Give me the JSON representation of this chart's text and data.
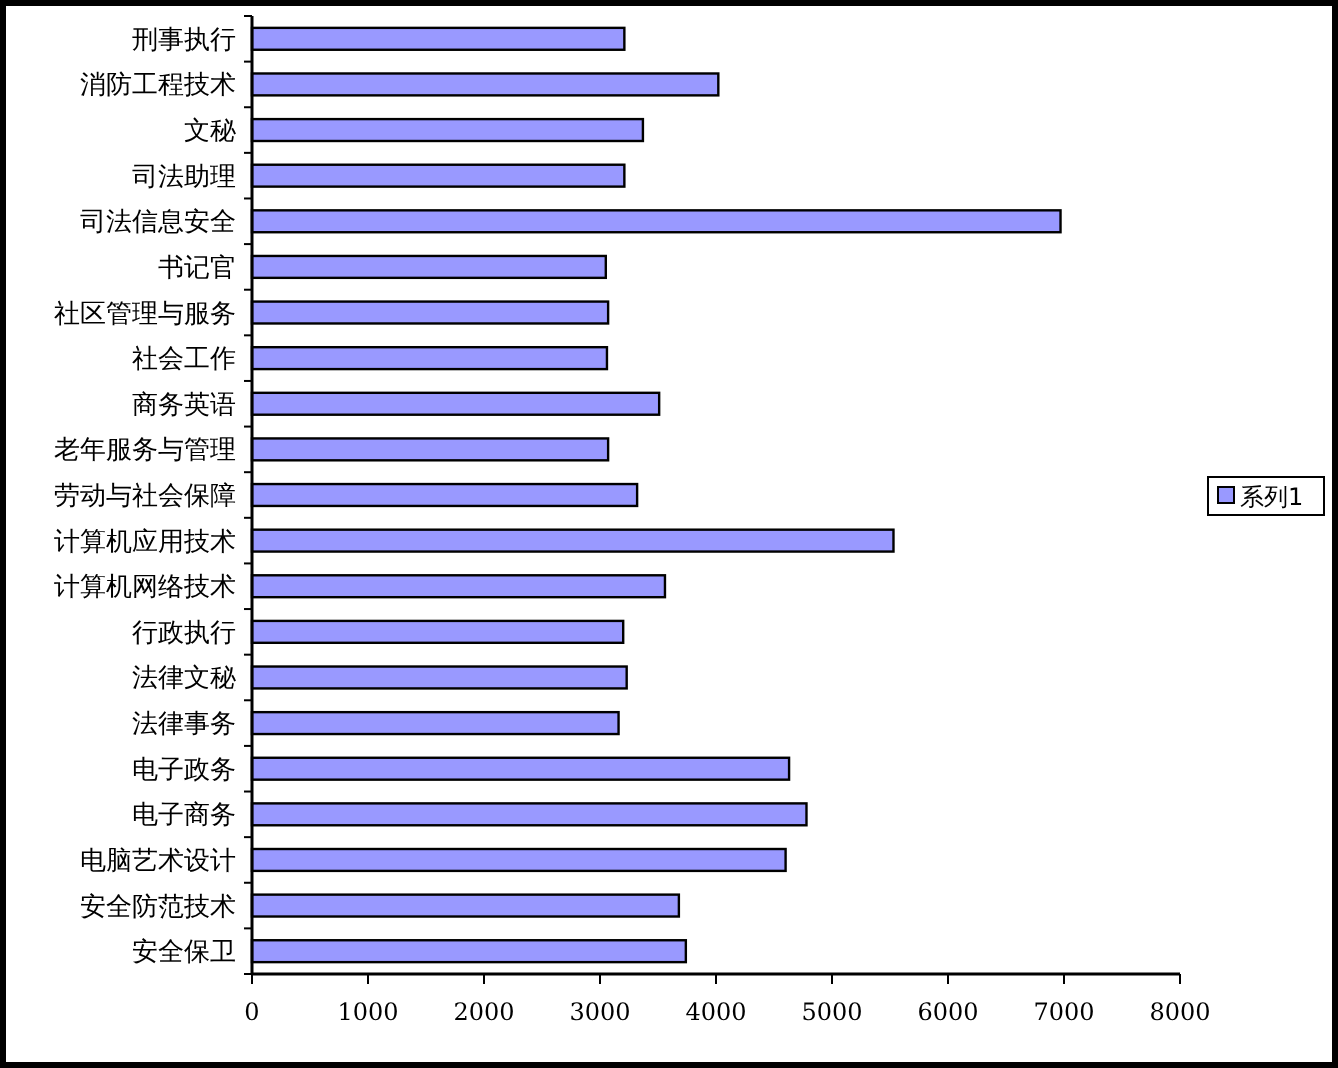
{
  "chart_data": {
    "type": "bar",
    "orientation": "horizontal",
    "categories": [
      "刑事执行",
      "消防工程技术",
      "文秘",
      "司法助理",
      "司法信息安全",
      "书记官",
      "社区管理与服务",
      "社会工作",
      "商务英语",
      "老年服务与管理",
      "劳动与社会保障",
      "计算机应用技术",
      "计算机网络技术",
      "行政执行",
      "法律文秘",
      "法律事务",
      "电子政务",
      "电子商务",
      "电脑艺术设计",
      "安全防范技术",
      "安全保卫"
    ],
    "series": [
      {
        "name": "系列1",
        "color": "#9999ff",
        "values": [
          3210,
          4020,
          3370,
          3210,
          6970,
          3050,
          3070,
          3060,
          3510,
          3070,
          3320,
          5530,
          3560,
          3200,
          3230,
          3160,
          4630,
          4780,
          4600,
          3680,
          3740
        ]
      }
    ],
    "xlim": [
      0,
      8000
    ],
    "xticks": [
      0,
      1000,
      2000,
      3000,
      4000,
      5000,
      6000,
      7000,
      8000
    ],
    "grid": false,
    "legend": "right"
  }
}
